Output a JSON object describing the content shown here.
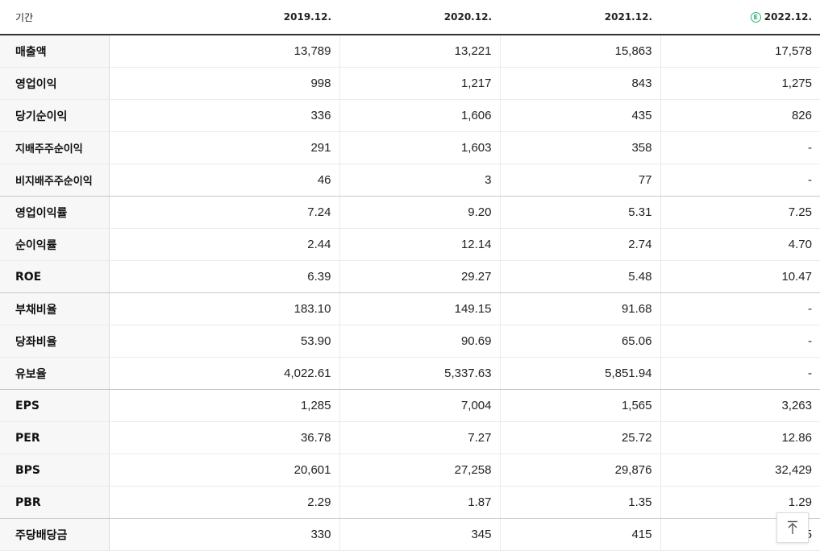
{
  "header": {
    "label": "기간",
    "estimate_icon": "estimate-icon",
    "estimate_mark": "E",
    "periods": [
      "2019.12.",
      "2020.12.",
      "2021.12.",
      "2022.12."
    ]
  },
  "rows": [
    {
      "label": "매출액",
      "values": [
        "13,789",
        "13,221",
        "15,863",
        "17,578"
      ]
    },
    {
      "label": "영업이익",
      "values": [
        "998",
        "1,217",
        "843",
        "1,275"
      ]
    },
    {
      "label": "당기순이익",
      "values": [
        "336",
        "1,606",
        "435",
        "826"
      ]
    },
    {
      "label": "지배주주순이익",
      "values": [
        "291",
        "1,603",
        "358",
        "-"
      ]
    },
    {
      "label": "비지배주주순이익",
      "values": [
        "46",
        "3",
        "77",
        "-"
      ]
    },
    {
      "label": "영업이익률",
      "values": [
        "7.24",
        "9.20",
        "5.31",
        "7.25"
      ]
    },
    {
      "label": "순이익률",
      "values": [
        "2.44",
        "12.14",
        "2.74",
        "4.70"
      ]
    },
    {
      "label": "ROE",
      "values": [
        "6.39",
        "29.27",
        "5.48",
        "10.47"
      ]
    },
    {
      "label": "부채비율",
      "values": [
        "183.10",
        "149.15",
        "91.68",
        "-"
      ]
    },
    {
      "label": "당좌비율",
      "values": [
        "53.90",
        "90.69",
        "65.06",
        "-"
      ]
    },
    {
      "label": "유보율",
      "values": [
        "4,022.61",
        "5,337.63",
        "5,851.94",
        "-"
      ]
    },
    {
      "label": "EPS",
      "values": [
        "1,285",
        "7,004",
        "1,565",
        "3,263"
      ]
    },
    {
      "label": "PER",
      "values": [
        "36.78",
        "7.27",
        "25.72",
        "12.86"
      ]
    },
    {
      "label": "BPS",
      "values": [
        "20,601",
        "27,258",
        "29,876",
        "32,429"
      ]
    },
    {
      "label": "PBR",
      "values": [
        "2.29",
        "1.87",
        "1.35",
        "1.29"
      ]
    },
    {
      "label": "주당배당금",
      "values": [
        "330",
        "345",
        "415",
        "5"
      ]
    }
  ],
  "scroll_top_button": {
    "icon": "arrow-up-to-top-icon"
  },
  "colors": {
    "estimate_green": "#2bb673"
  }
}
